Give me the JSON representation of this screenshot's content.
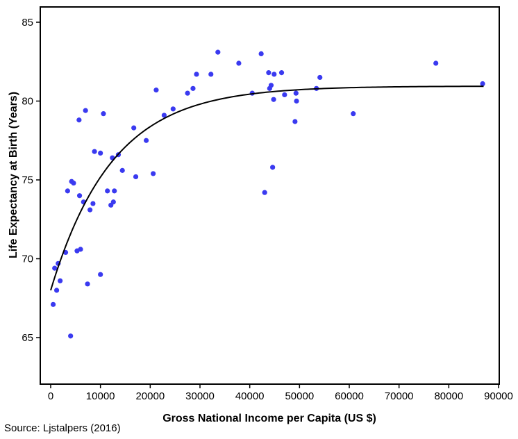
{
  "chart_data": {
    "type": "scatter",
    "xlabel": "Gross National Income per Capita (US $)",
    "ylabel": "Life Expectancy at Birth (Years)",
    "xlim": [
      0,
      90000
    ],
    "ylim": [
      62,
      85.5
    ],
    "xticks": [
      0,
      10000,
      20000,
      30000,
      40000,
      50000,
      60000,
      70000,
      80000,
      90000
    ],
    "yticks": [
      65,
      70,
      75,
      80,
      85
    ],
    "grid": false,
    "colors": {
      "points": "#3a3af0",
      "curve": "#000000"
    },
    "points": [
      [
        500,
        67.1
      ],
      [
        800,
        69.4
      ],
      [
        1200,
        68.0
      ],
      [
        1500,
        69.7
      ],
      [
        1900,
        68.6
      ],
      [
        3000,
        70.4
      ],
      [
        3400,
        74.3
      ],
      [
        4000,
        65.1
      ],
      [
        4200,
        74.9
      ],
      [
        4600,
        74.8
      ],
      [
        5300,
        70.5
      ],
      [
        5700,
        78.8
      ],
      [
        5800,
        74.0
      ],
      [
        6000,
        70.6
      ],
      [
        6600,
        73.6
      ],
      [
        7000,
        79.4
      ],
      [
        7400,
        68.4
      ],
      [
        7900,
        73.1
      ],
      [
        8500,
        73.5
      ],
      [
        8800,
        76.8
      ],
      [
        10000,
        76.7
      ],
      [
        10000,
        69.0
      ],
      [
        10600,
        79.2
      ],
      [
        11400,
        74.3
      ],
      [
        12100,
        73.4
      ],
      [
        12400,
        76.4
      ],
      [
        12600,
        73.6
      ],
      [
        12800,
        74.3
      ],
      [
        13600,
        76.6
      ],
      [
        14400,
        75.6
      ],
      [
        16700,
        78.3
      ],
      [
        17100,
        75.2
      ],
      [
        19200,
        77.5
      ],
      [
        20600,
        75.4
      ],
      [
        21200,
        80.7
      ],
      [
        22800,
        79.1
      ],
      [
        24600,
        79.5
      ],
      [
        27500,
        80.5
      ],
      [
        28600,
        80.8
      ],
      [
        29300,
        81.7
      ],
      [
        32200,
        81.7
      ],
      [
        33600,
        83.1
      ],
      [
        37800,
        82.4
      ],
      [
        40500,
        80.5
      ],
      [
        42300,
        83.0
      ],
      [
        43000,
        74.2
      ],
      [
        43800,
        81.8
      ],
      [
        44000,
        80.8
      ],
      [
        44300,
        81.0
      ],
      [
        44600,
        75.8
      ],
      [
        44800,
        80.1
      ],
      [
        44900,
        81.7
      ],
      [
        46400,
        81.8
      ],
      [
        47000,
        80.4
      ],
      [
        49100,
        78.7
      ],
      [
        49300,
        80.5
      ],
      [
        49400,
        80.0
      ],
      [
        53400,
        80.8
      ],
      [
        54100,
        81.5
      ],
      [
        60800,
        79.2
      ],
      [
        77400,
        82.4
      ],
      [
        86800,
        81.1
      ]
    ],
    "fit_curve": {
      "type": "exponential-plateau",
      "x_start": 0,
      "x_end": 87000,
      "y_start": 68.0,
      "y_plateau": 80.95,
      "rate": 8.08e-05
    }
  },
  "source_text": "Source: Ljstalpers (2016)"
}
